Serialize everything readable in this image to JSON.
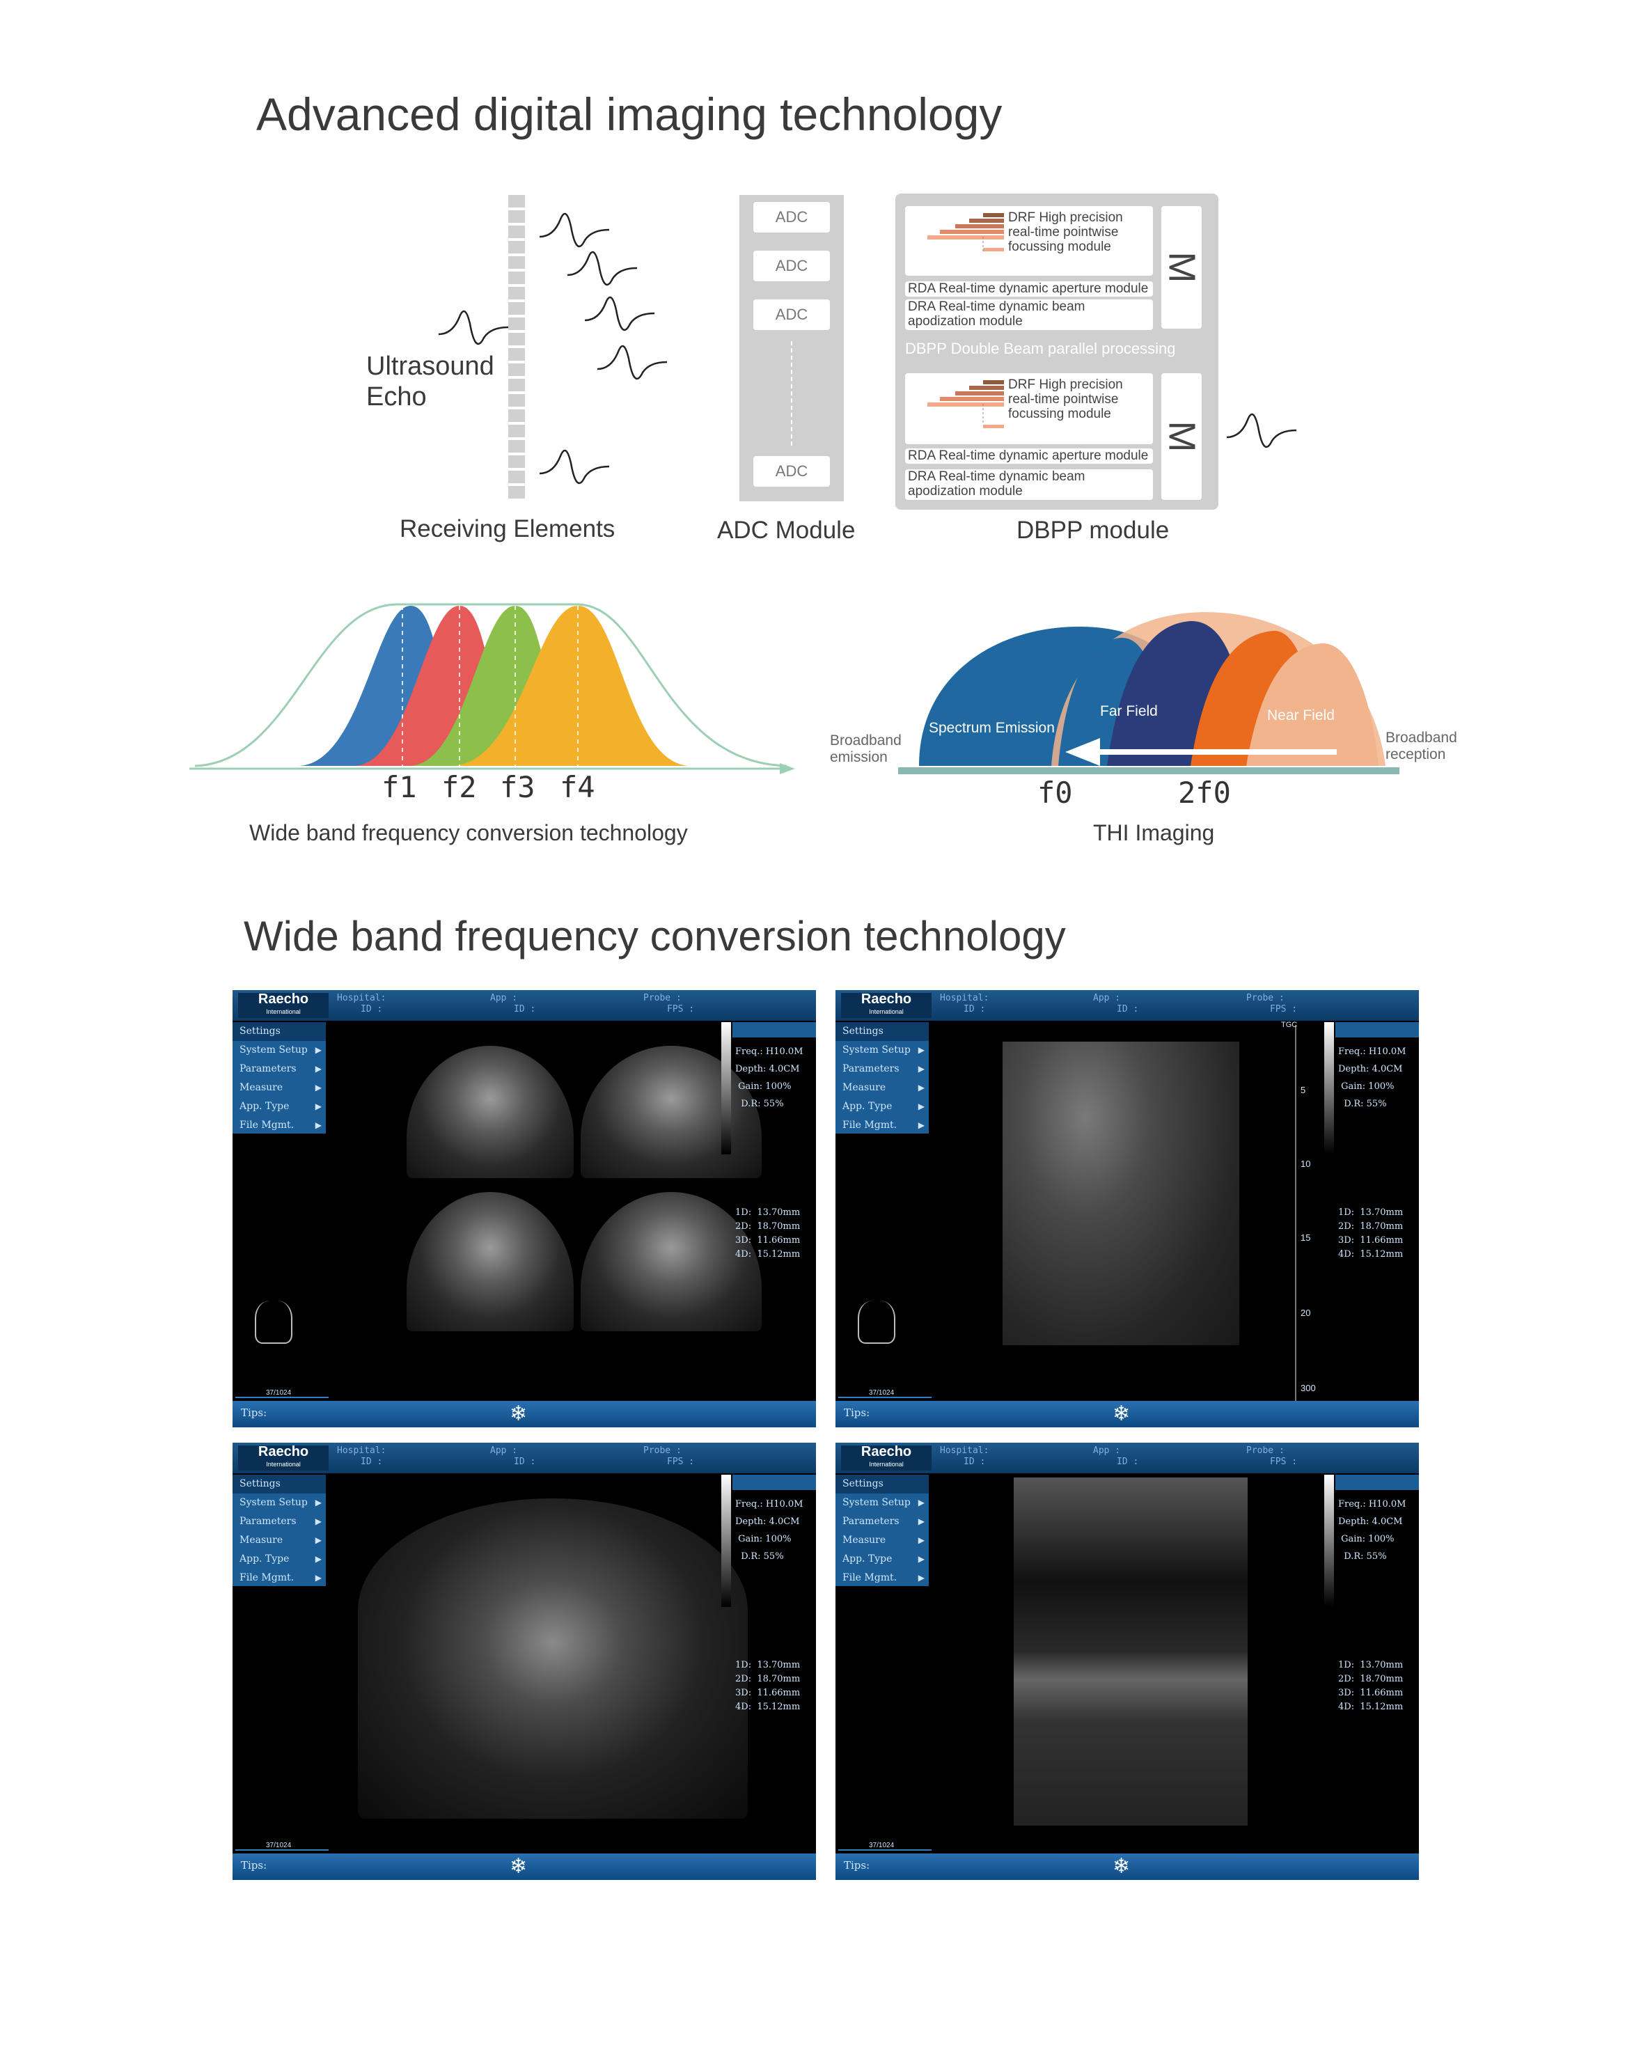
{
  "headings": {
    "title1": "Advanced digital imaging technology",
    "title2": "Wide band frequency conversion technology"
  },
  "diagram": {
    "ultrasound_echo": "Ultrasound Echo",
    "captions": {
      "receiving": "Receiving Elements",
      "adc": "ADC Module",
      "dbpp": "DBPP module",
      "wideband": "Wide band frequency conversion technology",
      "thi": "THI Imaging"
    },
    "adc_label": "ADC",
    "dbpp": {
      "drf": "DRF High precision real-time pointwise focussing module",
      "rda": "RDA Real-time dynamic aperture module",
      "dra": "DRA Real-time dynamic beam apodization module",
      "middle": "DBPP Double Beam parallel processing",
      "m": "M"
    },
    "freq_labels": [
      "f1",
      "f2",
      "f3",
      "f4"
    ],
    "thi": {
      "broadband_emission": "Broadband emission",
      "broadband_reception": "Broadband reception",
      "spectrum": "Spectrum Emission",
      "far": "Far Field",
      "near": "Near Field",
      "f0": "f0",
      "f2f0": "2f0"
    },
    "colors": {
      "blue": "#3a7ab8",
      "red": "#e65a5a",
      "green": "#8cc04a",
      "yellow": "#f3b02a",
      "thi_blue": "#1f69a0",
      "navy": "#2b3c7a",
      "orange": "#ea6a1e",
      "peach": "#f1b48c"
    }
  },
  "screens": {
    "brand": "Raecho",
    "brand_sub": "International",
    "hdr": {
      "hospital": "Hospital:",
      "id": "ID :",
      "app": "App :",
      "id2": "ID :",
      "probe": "Probe :",
      "fps": "FPS :"
    },
    "menu": [
      "Settings",
      "System Setup",
      "Parameters",
      "Measure",
      "App. Type",
      "File Mgmt."
    ],
    "params": "Freq.: H10.0M\nDepth: 4.0CM\n Gain: 100%\n  D.R: 55%",
    "measures": "1D:  13.70mm\n2D:  18.70mm\n3D:  11.66mm\n4D:  15.12mm",
    "frame": "37/1024",
    "tips": "Tips:",
    "snow": "❄",
    "tgc": "TGC",
    "depth_marks": [
      "5",
      "10",
      "15",
      "20",
      "300"
    ]
  }
}
